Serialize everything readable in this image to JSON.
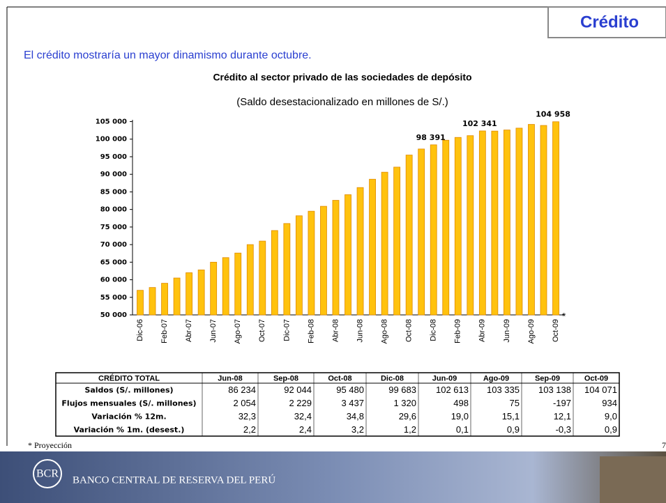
{
  "header": {
    "title": "Crédito",
    "subtitle": "El crédito mostraría un mayor dinamismo durante octubre."
  },
  "chart_data": {
    "type": "bar",
    "title": "Crédito al sector privado de las sociedades de depósito",
    "subtitle": "(Saldo desestacionalizado en millones de S/.)",
    "categories": [
      "Dic-06",
      null,
      "Feb-07",
      null,
      "Abr-07",
      null,
      "Jun-07",
      null,
      "Ago-07",
      null,
      "Oct-07",
      null,
      "Dic-07",
      null,
      "Feb-08",
      null,
      "Abr-08",
      null,
      "Jun-08",
      null,
      "Ago-08",
      null,
      "Oct-08",
      null,
      "Dic-08",
      null,
      "Feb-09",
      null,
      "Abr-09",
      null,
      "Jun-09",
      null,
      "Ago-09",
      null,
      "Oct-09"
    ],
    "values": [
      57000,
      57800,
      59000,
      60500,
      62000,
      62800,
      65000,
      66300,
      67600,
      70000,
      71000,
      74000,
      76000,
      78200,
      79500,
      80900,
      82600,
      84200,
      86234,
      88600,
      90600,
      92044,
      95480,
      97200,
      98391,
      99700,
      100500,
      101000,
      102341,
      102300,
      102613,
      103138,
      104200,
      103900,
      104958
    ],
    "value_labels": [
      null,
      null,
      null,
      null,
      null,
      null,
      null,
      null,
      null,
      null,
      null,
      null,
      null,
      null,
      null,
      null,
      null,
      null,
      null,
      null,
      null,
      null,
      null,
      null,
      "98 391",
      null,
      null,
      null,
      "102 341",
      null,
      null,
      null,
      null,
      null,
      "104 958"
    ],
    "color": "#ffc20e",
    "ylim": [
      50000,
      105500
    ],
    "yticks": [
      {
        "value": 50000,
        "label": "50 000"
      },
      {
        "value": 55000,
        "label": "55 000"
      },
      {
        "value": 60000,
        "label": "60 000"
      },
      {
        "value": 65000,
        "label": "65 000"
      },
      {
        "value": 70000,
        "label": "70 000"
      },
      {
        "value": 75000,
        "label": "75 000"
      },
      {
        "value": 80000,
        "label": "80 000"
      },
      {
        "value": 85000,
        "label": "85 000"
      },
      {
        "value": 90000,
        "label": "90 000"
      },
      {
        "value": 95000,
        "label": "95 000"
      },
      {
        "value": 100000,
        "label": "100 000"
      },
      {
        "value": 105000,
        "label": "105 000"
      }
    ],
    "annotation": "*"
  },
  "table": {
    "header": [
      "CRÉDITO TOTAL",
      "Jun-08",
      "Sep-08",
      "Oct-08",
      "Dic-08",
      "Jun-09",
      "Ago-09",
      "Sep-09",
      "Oct-09"
    ],
    "rows": [
      [
        "Saldos (S/. millones)",
        "86 234",
        "92 044",
        "95 480",
        "99 683",
        "102 613",
        "103 335",
        "103 138",
        "104 071"
      ],
      [
        "Flujos mensuales (S/. millones)",
        "2 054",
        "2 229",
        "3 437",
        "1 320",
        "498",
        "75",
        "-197",
        "934"
      ],
      [
        "Variación % 12m.",
        "32,3",
        "32,4",
        "34,8",
        "29,6",
        "19,0",
        "15,1",
        "12,1",
        "9,0"
      ],
      [
        "Variación % 1m. (desest.)",
        "2,2",
        "2,4",
        "3,2",
        "1,2",
        "0,1",
        "0,9",
        "-0,3",
        "0,9"
      ]
    ]
  },
  "footnote": "* Proyección",
  "page_number": "7",
  "footer": {
    "bank_name": "BANCO CENTRAL DE RESERVA DEL PERÚ"
  }
}
